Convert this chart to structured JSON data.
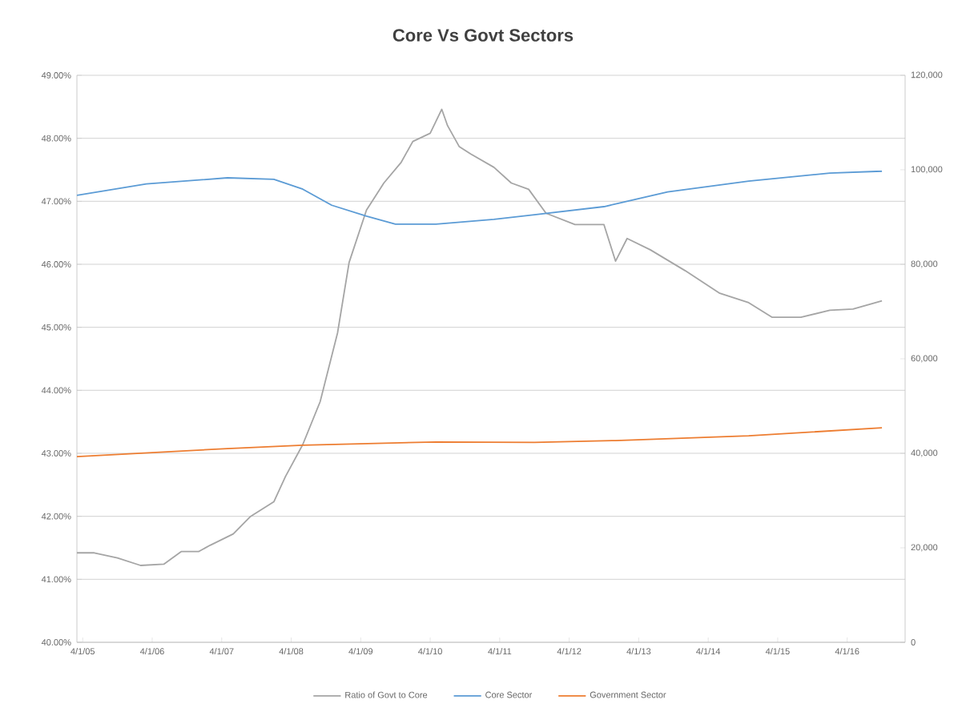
{
  "chart_data": {
    "type": "line",
    "title": "Core Vs Govt Sectors",
    "xlim": [
      "2005-03-01",
      "2017-02-01"
    ],
    "xticks": [
      {
        "value": "2005-04-01",
        "label": "4/1/05"
      },
      {
        "value": "2006-04-01",
        "label": "4/1/06"
      },
      {
        "value": "2007-04-01",
        "label": "4/1/07"
      },
      {
        "value": "2008-04-01",
        "label": "4/1/08"
      },
      {
        "value": "2009-04-01",
        "label": "4/1/09"
      },
      {
        "value": "2010-04-01",
        "label": "4/1/10"
      },
      {
        "value": "2011-04-01",
        "label": "4/1/11"
      },
      {
        "value": "2012-04-01",
        "label": "4/1/12"
      },
      {
        "value": "2013-04-01",
        "label": "4/1/13"
      },
      {
        "value": "2014-04-01",
        "label": "4/1/14"
      },
      {
        "value": "2015-04-01",
        "label": "4/1/15"
      },
      {
        "value": "2016-04-01",
        "label": "4/1/16"
      }
    ],
    "ylim": [
      40,
      49
    ],
    "yticks": [
      {
        "value": 40,
        "label": "40.00%"
      },
      {
        "value": 41,
        "label": "41.00%"
      },
      {
        "value": 42,
        "label": "42.00%"
      },
      {
        "value": 43,
        "label": "43.00%"
      },
      {
        "value": 44,
        "label": "44.00%"
      },
      {
        "value": 45,
        "label": "45.00%"
      },
      {
        "value": 46,
        "label": "46.00%"
      },
      {
        "value": 47,
        "label": "47.00%"
      },
      {
        "value": 48,
        "label": "48.00%"
      },
      {
        "value": 49,
        "label": "49.00%"
      }
    ],
    "y2lim": [
      0,
      120000
    ],
    "y2ticks": [
      0,
      {
        "value": 20000,
        "label": "20,000"
      },
      {
        "value": 40000,
        "label": "40,000"
      },
      {
        "value": 60000,
        "label": "60,000"
      },
      {
        "value": 80000,
        "label": "80,000"
      },
      {
        "value": 100000,
        "label": "100,000"
      },
      {
        "value": 120000,
        "label": "120,000"
      }
    ],
    "grid": "y",
    "legend": "bottom",
    "marker": "none",
    "line_style": "solid",
    "series": [
      {
        "name": "Ratio of Govt to Core",
        "color": "#a5a5a5",
        "x": [
          "2005-03",
          "2005-06",
          "2005-10",
          "2006-02",
          "2006-06",
          "2006-09",
          "2006-12",
          "2007-02",
          "2007-06",
          "2007-09",
          "2008-01",
          "2008-03",
          "2008-06",
          "2008-09",
          "2008-12",
          "2009-02",
          "2009-05",
          "2009-08",
          "2009-11",
          "2010-01",
          "2010-04",
          "2010-06",
          "2010-07",
          "2010-09",
          "2010-11",
          "2011-03",
          "2011-06",
          "2011-09",
          "2011-12",
          "2012-05",
          "2012-10",
          "2012-12",
          "2013-02",
          "2013-06",
          "2013-12",
          "2014-06",
          "2014-11",
          "2015-03",
          "2015-08",
          "2016-01",
          "2016-05",
          "2016-10"
        ],
        "values": [
          41.42,
          41.42,
          41.34,
          41.22,
          41.24,
          41.44,
          41.44,
          41.54,
          41.72,
          42.0,
          42.23,
          42.63,
          43.14,
          43.82,
          44.91,
          46.03,
          46.86,
          47.29,
          47.62,
          47.95,
          48.08,
          48.46,
          48.2,
          47.87,
          47.75,
          47.54,
          47.29,
          47.19,
          46.81,
          46.63,
          46.63,
          46.05,
          46.41,
          46.23,
          45.9,
          45.54,
          45.39,
          45.16,
          45.16,
          45.27,
          45.29,
          45.42
        ]
      },
      {
        "name": "Core Sector",
        "color": "#5b9bd5",
        "axis": "y2",
        "x": [
          "2005-03",
          "2006-03",
          "2007-05",
          "2008-01",
          "2008-06",
          "2008-11",
          "2009-05",
          "2009-10",
          "2010-05",
          "2011-03",
          "2011-10",
          "2012-10",
          "2013-09",
          "2014-11",
          "2016-01",
          "2016-10"
        ],
        "values": [
          94600,
          97000,
          98300,
          98000,
          95900,
          92500,
          90200,
          88500,
          88500,
          89500,
          90500,
          92200,
          95300,
          97600,
          99300,
          99700
        ]
      },
      {
        "name": "Government Sector",
        "color": "#ed7d31",
        "axis": "y2",
        "x": [
          "2005-03",
          "2007-05",
          "2008-06",
          "2010-05",
          "2011-10",
          "2012-12",
          "2014-11",
          "2016-10"
        ],
        "values": [
          39300,
          41000,
          41700,
          42400,
          42300,
          42700,
          43700,
          45400
        ]
      }
    ]
  }
}
